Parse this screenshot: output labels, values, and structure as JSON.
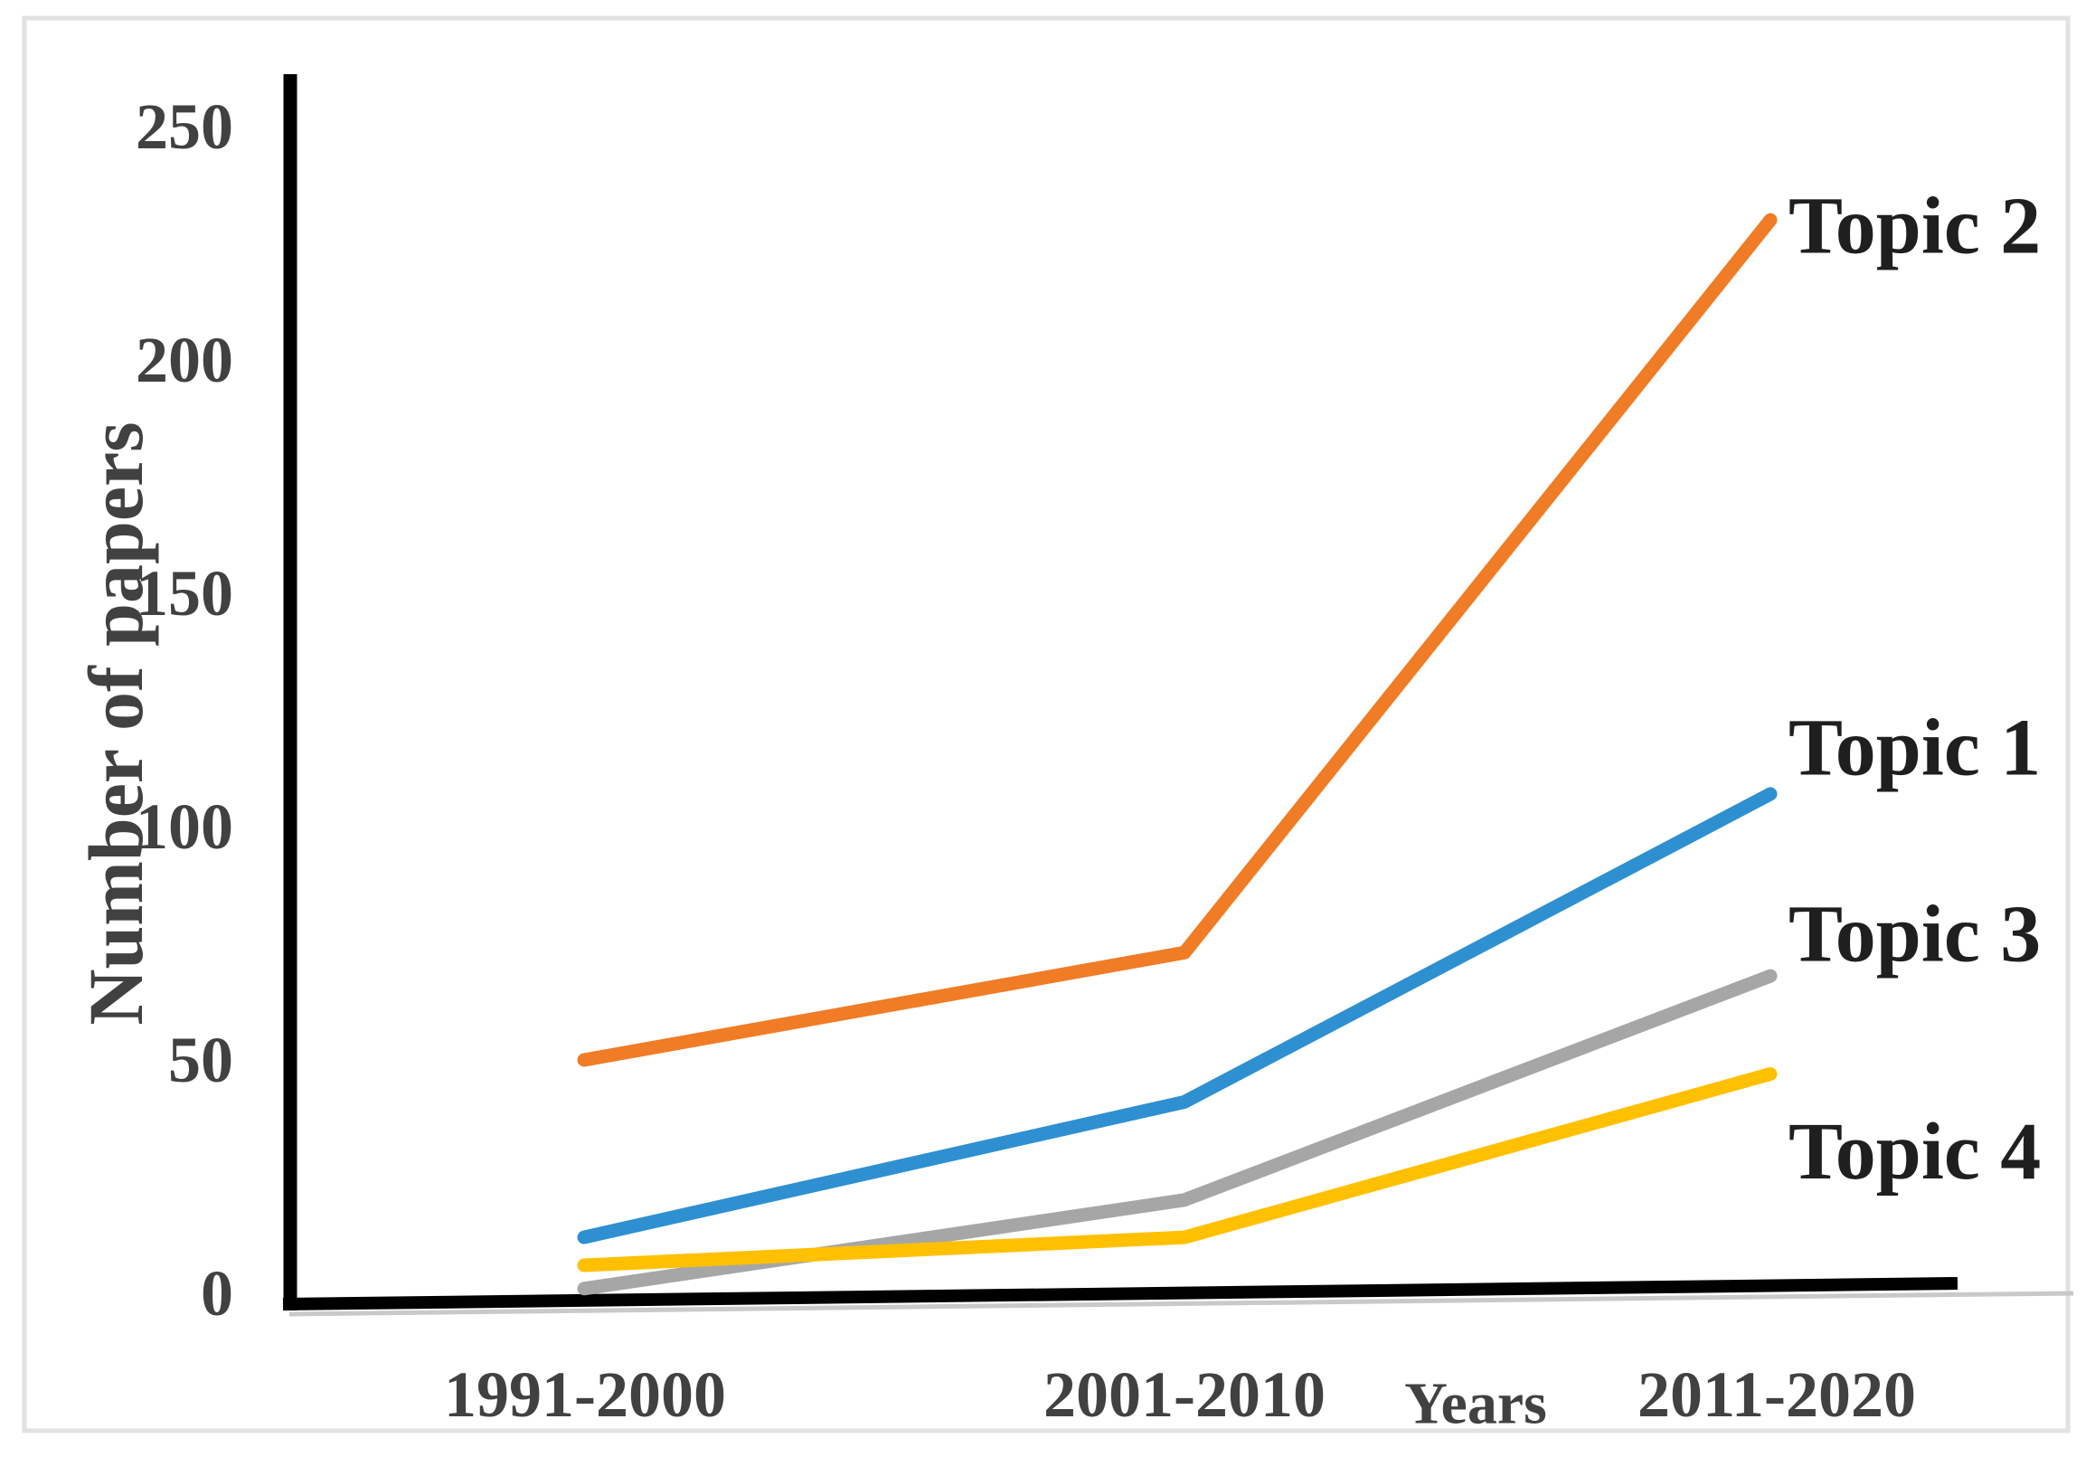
{
  "figure": {
    "ylabel": "Number of papers",
    "xlabel": "Years"
  },
  "chart_data": {
    "type": "line",
    "title": "",
    "categories": [
      "1991-2000",
      "2001-2010",
      "2011-2020"
    ],
    "series": [
      {
        "name": "Topic 1",
        "color": "#2E90D1",
        "values": [
          12,
          41,
          107
        ]
      },
      {
        "name": "Topic 2",
        "color": "#F07C26",
        "values": [
          50,
          73,
          230
        ]
      },
      {
        "name": "Topic 3",
        "color": "#A6A6A6",
        "values": [
          1,
          20,
          68
        ]
      },
      {
        "name": "Topic 4",
        "color": "#FFC000",
        "values": [
          6,
          12,
          47
        ]
      }
    ],
    "xlabel": "Years",
    "ylabel": "Number of papers",
    "yticks": [
      0,
      50,
      100,
      150,
      200,
      250
    ],
    "ylim": [
      0,
      262
    ],
    "grid": false,
    "legend_position": "labels-at-line-ends",
    "axis_color": "#000000",
    "baseline_color": "#C9C9C9",
    "frame_color": "#E2E2E2",
    "tick_text_color": "#414141",
    "series_label_color": "#1F1F1F"
  }
}
